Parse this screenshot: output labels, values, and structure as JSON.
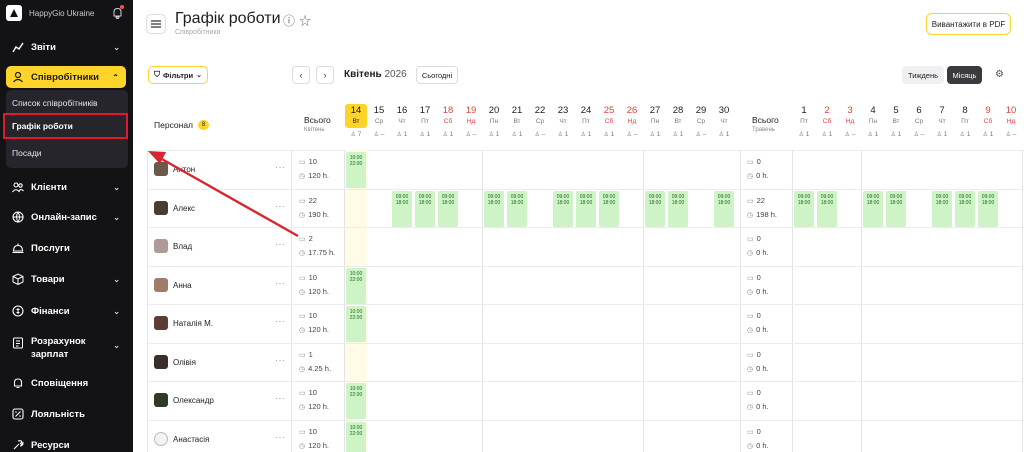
{
  "brand": {
    "name": "HappyGio Ukraine"
  },
  "sidebar": {
    "items": [
      {
        "label": "Звіти",
        "icon": "chart-icon"
      },
      {
        "label": "Співробітники",
        "icon": "user-icon",
        "active": true
      },
      {
        "label": "Клієнти",
        "icon": "clients-icon"
      },
      {
        "label": "Онлайн-запис",
        "icon": "globe-icon"
      },
      {
        "label": "Послуги",
        "icon": "bell-service-icon"
      },
      {
        "label": "Товари",
        "icon": "box-icon"
      },
      {
        "label": "Фінанси",
        "icon": "coin-icon"
      },
      {
        "label": "Розрахунок зарплат",
        "icon": "payroll-icon"
      },
      {
        "label": "Сповіщення",
        "icon": "notification-icon"
      },
      {
        "label": "Лояльність",
        "icon": "loyalty-icon"
      },
      {
        "label": "Ресурси",
        "icon": "tools-icon"
      }
    ],
    "sub_items": [
      {
        "label": "Список співробітників"
      },
      {
        "label": "Графік роботи",
        "active": true
      },
      {
        "label": "Посади"
      }
    ]
  },
  "header": {
    "title": "Графік роботи",
    "breadcrumb": "Співробітники",
    "pdf_button": "Вивантажити в PDF"
  },
  "toolbar": {
    "filters": "Фільтри",
    "month": "Квітень",
    "year": "2026",
    "today": "Сьогодні",
    "week": "Тиждень",
    "month_view": "Місяць"
  },
  "grid": {
    "personal_label": "Персонал",
    "personal_count": "8",
    "total_label": "Всього",
    "total_april": "Квітень",
    "total_may": "Травень",
    "april_days": [
      {
        "d": "14",
        "w": "Вт",
        "c": "7",
        "today": true
      },
      {
        "d": "15",
        "w": "Ср",
        "c": "–"
      },
      {
        "d": "16",
        "w": "Чт",
        "c": "1"
      },
      {
        "d": "17",
        "w": "Пт",
        "c": "1"
      },
      {
        "d": "18",
        "w": "Сб",
        "c": "1",
        "weekend": true
      },
      {
        "d": "19",
        "w": "Нд",
        "c": "–",
        "weekend": true
      },
      {
        "d": "20",
        "w": "Пн",
        "c": "1"
      },
      {
        "d": "21",
        "w": "Вт",
        "c": "1"
      },
      {
        "d": "22",
        "w": "Ср",
        "c": "–"
      },
      {
        "d": "23",
        "w": "Чт",
        "c": "1"
      },
      {
        "d": "24",
        "w": "Пт",
        "c": "1"
      },
      {
        "d": "25",
        "w": "Сб",
        "c": "1",
        "weekend": true
      },
      {
        "d": "26",
        "w": "Нд",
        "c": "–",
        "weekend": true
      },
      {
        "d": "27",
        "w": "Пн",
        "c": "1"
      },
      {
        "d": "28",
        "w": "Вт",
        "c": "1"
      },
      {
        "d": "29",
        "w": "Ср",
        "c": "–"
      },
      {
        "d": "30",
        "w": "Чт",
        "c": "1"
      }
    ],
    "may_days": [
      {
        "d": "1",
        "w": "Пт",
        "c": "1"
      },
      {
        "d": "2",
        "w": "Сб",
        "c": "1",
        "weekend": true
      },
      {
        "d": "3",
        "w": "Нд",
        "c": "–",
        "weekend": true
      },
      {
        "d": "4",
        "w": "Пн",
        "c": "1"
      },
      {
        "d": "5",
        "w": "Вт",
        "c": "1"
      },
      {
        "d": "6",
        "w": "Ср",
        "c": "–"
      },
      {
        "d": "7",
        "w": "Чт",
        "c": "1"
      },
      {
        "d": "8",
        "w": "Пт",
        "c": "1"
      },
      {
        "d": "9",
        "w": "Сб",
        "c": "1",
        "weekend": true
      },
      {
        "d": "10",
        "w": "Нд",
        "c": "–",
        "weekend": true
      }
    ],
    "employees": [
      {
        "name": "Антон",
        "shifts_apr": "10",
        "hours_apr": "120 h.",
        "shifts_may": "0",
        "hours_may": "0 h.",
        "avatar_color": "#6b5a4a"
      },
      {
        "name": "Алекс",
        "shifts_apr": "22",
        "hours_apr": "190 h.",
        "shifts_may": "22",
        "hours_may": "198 h.",
        "avatar_color": "#4a3c32"
      },
      {
        "name": "Влад",
        "shifts_apr": "2",
        "hours_apr": "17.75 h.",
        "shifts_may": "0",
        "hours_may": "0 h.",
        "avatar_color": "#b09a96"
      },
      {
        "name": "Анна",
        "shifts_apr": "10",
        "hours_apr": "120 h.",
        "shifts_may": "0",
        "hours_may": "0 h.",
        "avatar_color": "#a07b6a"
      },
      {
        "name": "Наталія М.",
        "shifts_apr": "10",
        "hours_apr": "120 h.",
        "shifts_may": "0",
        "hours_may": "0 h.",
        "avatar_color": "#5a3e36"
      },
      {
        "name": "Олівія",
        "shifts_apr": "1",
        "hours_apr": "4.25 h.",
        "shifts_may": "0",
        "hours_may": "0 h.",
        "avatar_color": "#3a2e2a"
      },
      {
        "name": "Олександр",
        "shifts_apr": "10",
        "hours_apr": "120 h.",
        "shifts_may": "0",
        "hours_may": "0 h.",
        "avatar_color": "#2f3a2a"
      },
      {
        "name": "Анастасія",
        "shifts_apr": "10",
        "hours_apr": "120 h.",
        "shifts_may": "0",
        "hours_may": "0 h.",
        "avatar_color": "#d8d8dc"
      }
    ],
    "shift_a": {
      "start": "10:00",
      "end": "22:00"
    },
    "shift_b": {
      "start": "09:00",
      "end": "18:00"
    }
  },
  "colors": {
    "accent": "#ffd42a",
    "shift": "#cdf3c6",
    "weekend": "#e0433d",
    "highlight": "#e0192b"
  }
}
